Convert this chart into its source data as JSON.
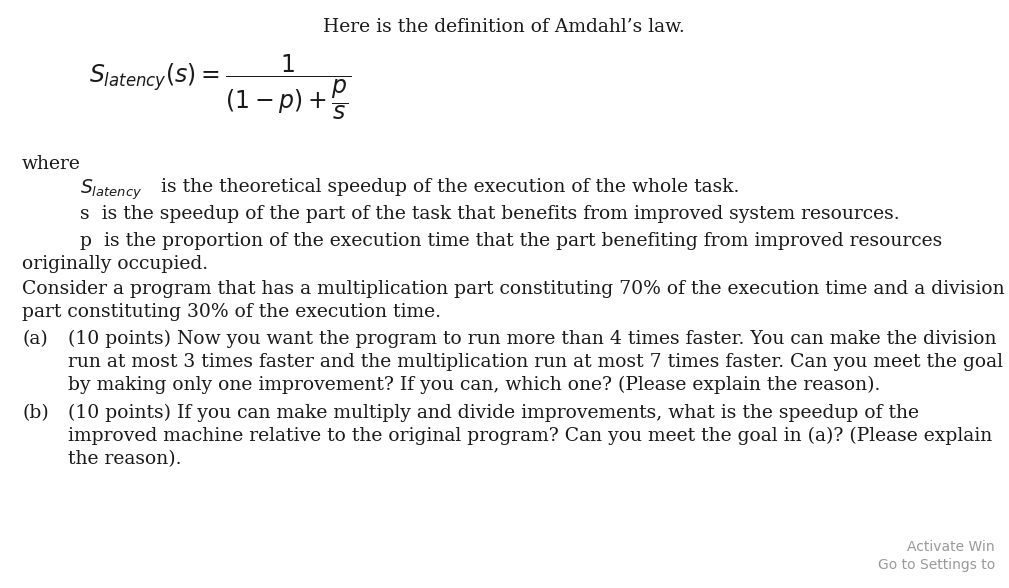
{
  "bg_color": "#ffffff",
  "text_color": "#1a1a1a",
  "title": "Here is the definition of Amdahl’s law.",
  "watermark1": "Activate Win",
  "watermark2": "Go to Settings to",
  "figwidth": 10.09,
  "figheight": 5.88,
  "dpi": 100
}
